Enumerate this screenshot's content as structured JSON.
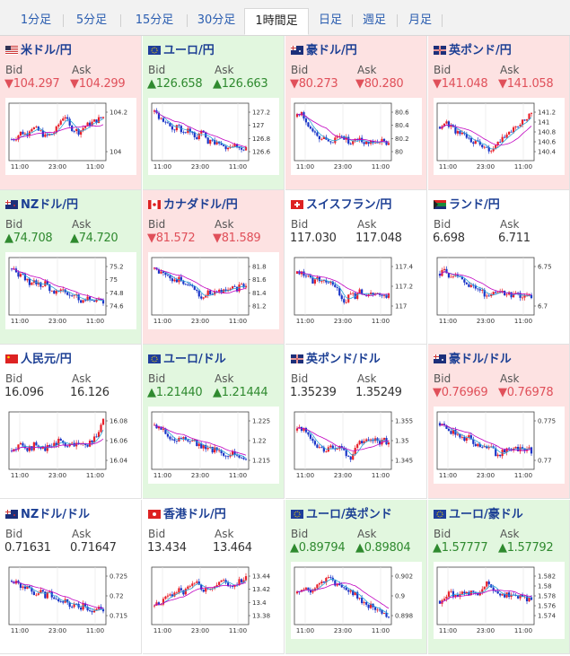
{
  "tabs": [
    {
      "label": "1分足",
      "active": false
    },
    {
      "label": "5分足",
      "active": false
    },
    {
      "label": "15分足",
      "active": false
    },
    {
      "label": "30分足",
      "active": false
    },
    {
      "label": "1時間足",
      "active": true
    },
    {
      "label": "日足",
      "active": false
    },
    {
      "label": "週足",
      "active": false
    },
    {
      "label": "月足",
      "active": false
    }
  ],
  "labels": {
    "bid": "Bid",
    "ask": "Ask"
  },
  "colors": {
    "down_bg": "#fde2e2",
    "up_bg": "#e2f7df",
    "down": "#e0505a",
    "up": "#2f8a2f",
    "candle_up": "#e8202a",
    "candle_down": "#1a35c8",
    "ma": "#c000c0",
    "ma_short": "#29a3d6"
  },
  "panels": [
    {
      "name": "米ドル/円",
      "flag": "flag-us",
      "dir": "down",
      "bid": "▼104.297",
      "ask": "▼104.299",
      "x_labels": [
        "11:00",
        "23:00",
        "11:00"
      ],
      "y_ticks": [
        "104.2",
        "104"
      ],
      "chart_data": {
        "type": "candlestick",
        "trend": [
          0.35,
          0.4,
          0.5,
          0.45,
          0.6,
          0.55,
          0.5,
          0.4,
          0.45,
          0.5,
          0.7,
          0.85,
          0.6,
          0.55,
          0.5,
          0.6,
          0.65,
          0.7,
          0.75,
          0.8
        ]
      }
    },
    {
      "name": "ユーロ/円",
      "flag": "flag-eu",
      "dir": "up",
      "bid": "▲126.658",
      "ask": "▲126.663",
      "x_labels": [
        "11:00",
        "23:00",
        "11:00"
      ],
      "y_ticks": [
        "127.2",
        "127",
        "126.8",
        "126.6"
      ],
      "chart_data": {
        "type": "candlestick",
        "trend": [
          0.9,
          0.75,
          0.7,
          0.6,
          0.55,
          0.6,
          0.5,
          0.55,
          0.45,
          0.4,
          0.5,
          0.3,
          0.35,
          0.25,
          0.3,
          0.2,
          0.25,
          0.2,
          0.18,
          0.15
        ]
      }
    },
    {
      "name": "豪ドル/円",
      "flag": "flag-au",
      "dir": "down",
      "bid": "▼80.273",
      "ask": "▼80.280",
      "x_labels": [
        "11:00",
        "23:00",
        "11:00"
      ],
      "y_ticks": [
        "80.6",
        "80.4",
        "80.2",
        "80"
      ],
      "chart_data": {
        "type": "candlestick",
        "trend": [
          0.8,
          0.85,
          0.7,
          0.55,
          0.45,
          0.35,
          0.4,
          0.3,
          0.35,
          0.4,
          0.35,
          0.3,
          0.4,
          0.35,
          0.3,
          0.25,
          0.3,
          0.35,
          0.3,
          0.3
        ]
      }
    },
    {
      "name": "英ポンド/円",
      "flag": "flag-gb",
      "dir": "down",
      "bid": "▼141.048",
      "ask": "▼141.058",
      "x_labels": [
        "11:00",
        "23:00",
        "11:00"
      ],
      "y_ticks": [
        "141.2",
        "141",
        "140.8",
        "140.6",
        "140.4"
      ],
      "chart_data": {
        "type": "candlestick",
        "trend": [
          0.6,
          0.7,
          0.65,
          0.55,
          0.45,
          0.5,
          0.35,
          0.3,
          0.25,
          0.2,
          0.15,
          0.1,
          0.25,
          0.4,
          0.5,
          0.55,
          0.6,
          0.7,
          0.8,
          0.85
        ]
      }
    },
    {
      "name": "NZドル/円",
      "flag": "flag-nz",
      "dir": "up",
      "bid": "▲74.708",
      "ask": "▲74.720",
      "x_labels": [
        "11:00",
        "23:00",
        "11:00"
      ],
      "y_ticks": [
        "75.2",
        "75",
        "74.8",
        "74.6"
      ],
      "chart_data": {
        "type": "candlestick",
        "trend": [
          0.85,
          0.75,
          0.7,
          0.65,
          0.55,
          0.6,
          0.5,
          0.55,
          0.45,
          0.4,
          0.45,
          0.35,
          0.3,
          0.35,
          0.25,
          0.2,
          0.25,
          0.2,
          0.25,
          0.2
        ]
      }
    },
    {
      "name": "カナダドル/円",
      "flag": "flag-ca",
      "dir": "down",
      "bid": "▼81.572",
      "ask": "▼81.589",
      "x_labels": [
        "11:00",
        "23:00",
        "11:00"
      ],
      "y_ticks": [
        "81.8",
        "81.6",
        "81.4",
        "81.2"
      ],
      "chart_data": {
        "type": "candlestick",
        "trend": [
          0.85,
          0.8,
          0.75,
          0.7,
          0.6,
          0.65,
          0.6,
          0.5,
          0.55,
          0.35,
          0.2,
          0.4,
          0.35,
          0.45,
          0.4,
          0.45,
          0.5,
          0.45,
          0.5,
          0.5
        ]
      }
    },
    {
      "name": "スイスフラン/円",
      "flag": "flag-ch",
      "dir": "flat",
      "bid": "117.030",
      "ask": "117.048",
      "x_labels": [
        "11:00",
        "23:00",
        "11:00"
      ],
      "y_ticks": [
        "117.4",
        "117.2",
        "117"
      ],
      "chart_data": {
        "type": "candlestick",
        "trend": [
          0.75,
          0.8,
          0.7,
          0.6,
          0.65,
          0.6,
          0.55,
          0.6,
          0.5,
          0.3,
          0.2,
          0.35,
          0.3,
          0.4,
          0.35,
          0.3,
          0.35,
          0.3,
          0.35,
          0.3
        ]
      }
    },
    {
      "name": "ランド/円",
      "flag": "flag-za",
      "dir": "flat",
      "bid": "6.698",
      "ask": "6.711",
      "x_labels": [
        "11:00",
        "23:00",
        "11:00"
      ],
      "y_ticks": [
        "6.75",
        "6.7"
      ],
      "chart_data": {
        "type": "candlestick",
        "trend": [
          0.75,
          0.8,
          0.7,
          0.72,
          0.65,
          0.6,
          0.5,
          0.55,
          0.45,
          0.35,
          0.3,
          0.4,
          0.35,
          0.4,
          0.35,
          0.3,
          0.35,
          0.3,
          0.3,
          0.28
        ]
      }
    },
    {
      "name": "人民元/円",
      "flag": "flag-cn",
      "dir": "flat",
      "bid": "16.096",
      "ask": "16.126",
      "x_labels": [
        "11:00",
        "23:00",
        "11:00"
      ],
      "y_ticks": [
        "16.08",
        "16.06",
        "16.04"
      ],
      "chart_data": {
        "type": "candlestick",
        "trend": [
          0.3,
          0.35,
          0.4,
          0.3,
          0.35,
          0.45,
          0.4,
          0.35,
          0.4,
          0.45,
          0.5,
          0.4,
          0.45,
          0.4,
          0.45,
          0.4,
          0.45,
          0.5,
          0.7,
          0.9
        ]
      }
    },
    {
      "name": "ユーロ/ドル",
      "flag": "flag-eu",
      "dir": "up",
      "bid": "▲1.21440",
      "ask": "▲1.21444",
      "x_labels": [
        "11:00",
        "23:00",
        "11:00"
      ],
      "y_ticks": [
        "1.225",
        "1.22",
        "1.215"
      ],
      "chart_data": {
        "type": "candlestick",
        "trend": [
          0.8,
          0.75,
          0.7,
          0.6,
          0.55,
          0.5,
          0.55,
          0.45,
          0.5,
          0.4,
          0.35,
          0.4,
          0.3,
          0.35,
          0.25,
          0.2,
          0.25,
          0.2,
          0.15,
          0.15
        ]
      }
    },
    {
      "name": "英ポンド/ドル",
      "flag": "flag-gb",
      "dir": "flat",
      "bid": "1.35239",
      "ask": "1.35249",
      "x_labels": [
        "11:00",
        "23:00",
        "11:00"
      ],
      "y_ticks": [
        "1.355",
        "1.35",
        "1.345"
      ],
      "chart_data": {
        "type": "candlestick",
        "trend": [
          0.7,
          0.75,
          0.65,
          0.5,
          0.4,
          0.35,
          0.3,
          0.4,
          0.3,
          0.35,
          0.25,
          0.15,
          0.3,
          0.45,
          0.5,
          0.45,
          0.5,
          0.45,
          0.5,
          0.45
        ]
      }
    },
    {
      "name": "豪ドル/ドル",
      "flag": "flag-au",
      "dir": "down",
      "bid": "▼0.76969",
      "ask": "▼0.76978",
      "x_labels": [
        "11:00",
        "23:00",
        "11:00"
      ],
      "y_ticks": [
        "0.775",
        "0.77"
      ],
      "chart_data": {
        "type": "candlestick",
        "trend": [
          0.85,
          0.8,
          0.7,
          0.65,
          0.6,
          0.5,
          0.55,
          0.45,
          0.4,
          0.35,
          0.4,
          0.3,
          0.2,
          0.3,
          0.35,
          0.3,
          0.35,
          0.3,
          0.35,
          0.3
        ]
      }
    },
    {
      "name": "NZドル/ドル",
      "flag": "flag-nz",
      "dir": "flat",
      "bid": "0.71631",
      "ask": "0.71647",
      "x_labels": [
        "11:00",
        "23:00",
        "11:00"
      ],
      "y_ticks": [
        "0.725",
        "0.72",
        "0.715"
      ],
      "chart_data": {
        "type": "candlestick",
        "trend": [
          0.8,
          0.75,
          0.7,
          0.65,
          0.6,
          0.55,
          0.6,
          0.5,
          0.55,
          0.45,
          0.35,
          0.4,
          0.3,
          0.35,
          0.25,
          0.3,
          0.25,
          0.2,
          0.25,
          0.2
        ]
      }
    },
    {
      "name": "香港ドル/円",
      "flag": "flag-hk",
      "dir": "flat",
      "bid": "13.434",
      "ask": "13.464",
      "x_labels": [
        "11:00",
        "23:00",
        "11:00"
      ],
      "y_ticks": [
        "13.44",
        "13.42",
        "13.4",
        "13.38"
      ],
      "chart_data": {
        "type": "candlestick",
        "trend": [
          0.3,
          0.35,
          0.4,
          0.5,
          0.55,
          0.6,
          0.55,
          0.65,
          0.7,
          0.75,
          0.65,
          0.6,
          0.7,
          0.75,
          0.8,
          0.75,
          0.7,
          0.75,
          0.8,
          0.85
        ]
      }
    },
    {
      "name": "ユーロ/英ポンド",
      "flag": "flag-eu",
      "dir": "up",
      "bid": "▲0.89794",
      "ask": "▲0.89804",
      "x_labels": [
        "11:00",
        "23:00",
        "11:00"
      ],
      "y_ticks": [
        "0.902",
        "0.9",
        "0.898"
      ],
      "chart_data": {
        "type": "candlestick",
        "trend": [
          0.55,
          0.6,
          0.65,
          0.6,
          0.7,
          0.75,
          0.8,
          0.85,
          0.75,
          0.7,
          0.65,
          0.6,
          0.55,
          0.4,
          0.35,
          0.3,
          0.25,
          0.2,
          0.15,
          0.1
        ]
      }
    },
    {
      "name": "ユーロ/豪ドル",
      "flag": "flag-eu",
      "dir": "up",
      "bid": "▲1.57777",
      "ask": "▲1.57792",
      "x_labels": [
        "11:00",
        "23:00",
        "11:00"
      ],
      "y_ticks": [
        "1.582",
        "1.58",
        "1.578",
        "1.576",
        "1.574"
      ],
      "chart_data": {
        "type": "candlestick",
        "trend": [
          0.4,
          0.5,
          0.6,
          0.45,
          0.5,
          0.55,
          0.5,
          0.6,
          0.55,
          0.7,
          0.75,
          0.6,
          0.55,
          0.5,
          0.55,
          0.5,
          0.45,
          0.5,
          0.45,
          0.4
        ]
      }
    }
  ]
}
